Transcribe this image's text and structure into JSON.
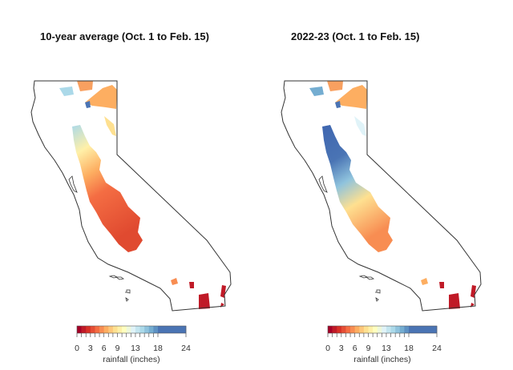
{
  "panels": [
    {
      "title": "10-year average (Oct. 1 to Feb. 15)",
      "scheme": "average"
    },
    {
      "title": "2022-23 (Oct. 1 to Feb. 15)",
      "scheme": "current"
    }
  ],
  "legend": {
    "title": "rainfall (inches)",
    "tick_labels": [
      "0",
      "3",
      "6",
      "9",
      "13",
      "18",
      "24"
    ],
    "tick_values": [
      0,
      3,
      6,
      9,
      13,
      18,
      24
    ],
    "breaks": [
      0,
      1,
      2,
      3,
      4,
      5,
      6,
      7,
      8,
      9,
      10,
      11,
      12,
      13,
      14,
      15,
      16,
      17,
      18,
      24
    ],
    "colors": [
      "#a50026",
      "#c01a27",
      "#d73027",
      "#e54e35",
      "#f46d43",
      "#f88d52",
      "#fdae61",
      "#fec77a",
      "#fee090",
      "#fff0a8",
      "#ffffbf",
      "#eef8db",
      "#e0f3f8",
      "#c4e6f0",
      "#abd9e9",
      "#8fc3dd",
      "#74add1",
      "#5d91c3",
      "#4a74b4"
    ]
  }
}
